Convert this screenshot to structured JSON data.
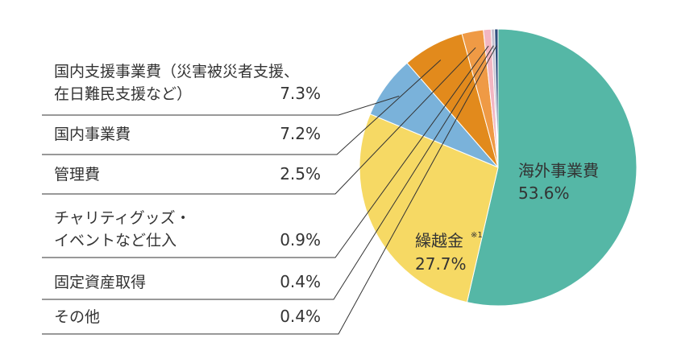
{
  "chart_data": {
    "type": "pie",
    "slices": [
      {
        "label": "海外事業費",
        "value": 53.6,
        "display": "53.6%",
        "color": "#55b7a6",
        "leader": false
      },
      {
        "label": "繰越金",
        "value": 27.7,
        "display": "27.7%",
        "note": "※1",
        "color": "#f6d964",
        "leader": false
      },
      {
        "label": "国内支援事業費（災害被災者支援、在日難民支援など）",
        "lines": [
          "国内支援事業費（災害被災者支援、",
          "在日難民支援など）"
        ],
        "value": 7.3,
        "display": "7.3%",
        "color": "#7ab2da",
        "leader": true
      },
      {
        "label": "国内事業費",
        "lines": [
          "国内事業費"
        ],
        "value": 7.2,
        "display": "7.2%",
        "color": "#e28a1c",
        "leader": true
      },
      {
        "label": "管理費",
        "lines": [
          "管理費"
        ],
        "value": 2.5,
        "display": "2.5%",
        "color": "#ef9a45",
        "leader": true
      },
      {
        "label": "チャリティグッズ・イベントなど仕入",
        "lines": [
          "チャリティグッズ・",
          "イベントなど仕入"
        ],
        "value": 0.9,
        "display": "0.9%",
        "color": "#f2b6c2",
        "leader": true
      },
      {
        "label": "固定資産取得",
        "lines": [
          "固定資産取得"
        ],
        "value": 0.4,
        "display": "0.4%",
        "color": "#c4c0cf",
        "leader": true
      },
      {
        "label": "その他",
        "lines": [
          "その他"
        ],
        "value": 0.4,
        "display": "0.4%",
        "color": "#2f4e7e",
        "leader": true
      }
    ]
  }
}
